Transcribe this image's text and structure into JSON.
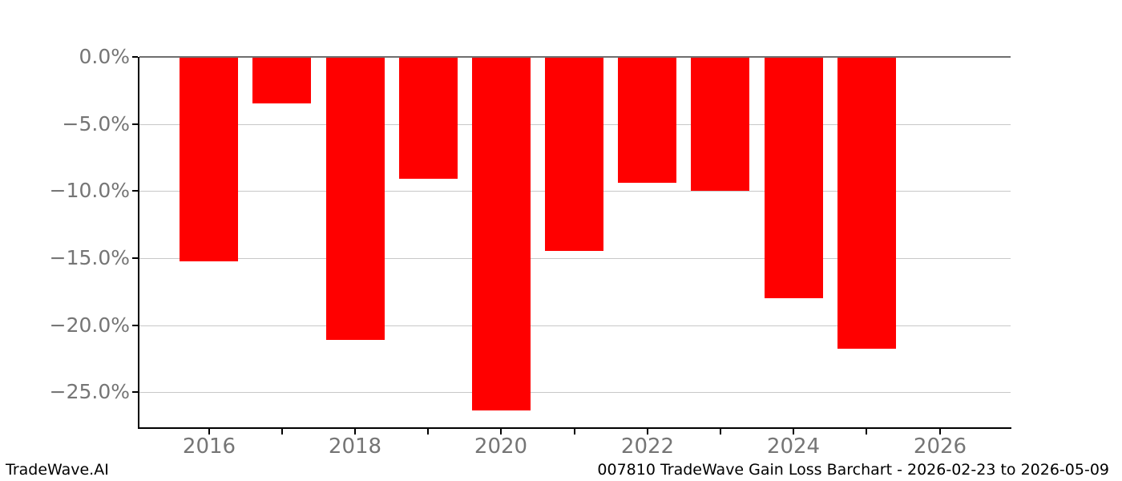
{
  "chart_data": {
    "type": "bar",
    "title": "",
    "xlabel": "",
    "ylabel": "",
    "categories": [
      "2016",
      "2017",
      "2018",
      "2019",
      "2020",
      "2021",
      "2022",
      "2023",
      "2024",
      "2025"
    ],
    "values": [
      -15.2,
      -3.4,
      -21.0,
      -9.0,
      -26.3,
      -14.4,
      -9.3,
      -9.9,
      -17.9,
      -21.7
    ],
    "units": "percent",
    "bar_color": "#ff0000",
    "ylim": [
      -27.6,
      0
    ],
    "xlim": [
      2015.05,
      2026.97
    ],
    "grid": "horizontal",
    "legend": false,
    "y_ticks": [
      {
        "value": 0,
        "label": "0.0%"
      },
      {
        "value": -5,
        "label": "−5.0%"
      },
      {
        "value": -10,
        "label": "−10.0%"
      },
      {
        "value": -15,
        "label": "−15.0%"
      },
      {
        "value": -20,
        "label": "−20.0%"
      },
      {
        "value": -25,
        "label": "−25.0%"
      }
    ],
    "x_ticks": [
      {
        "year": 2016,
        "label": "2016"
      },
      {
        "year": 2017,
        "label": ""
      },
      {
        "year": 2018,
        "label": "2018"
      },
      {
        "year": 2019,
        "label": ""
      },
      {
        "year": 2020,
        "label": "2020"
      },
      {
        "year": 2021,
        "label": ""
      },
      {
        "year": 2022,
        "label": "2022"
      },
      {
        "year": 2023,
        "label": ""
      },
      {
        "year": 2024,
        "label": "2024"
      },
      {
        "year": 2025,
        "label": ""
      },
      {
        "year": 2026,
        "label": "2026"
      }
    ]
  },
  "footer": {
    "brand": "TradeWave.AI",
    "title": "007810 TradeWave Gain Loss Barchart - 2026-02-23 to 2026-05-09"
  },
  "colors": {
    "bar": "#ff0000",
    "grid": "#c8c8c8",
    "zero_line": "#6e6e6e",
    "spine": "#000000",
    "tick": "#000000",
    "tick_label": "#757575",
    "footer_text": "#000000"
  }
}
